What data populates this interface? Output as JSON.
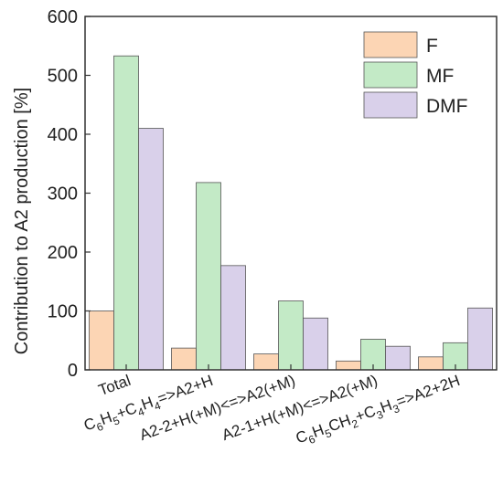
{
  "chart_data": {
    "type": "bar",
    "title": "",
    "xlabel": "",
    "ylabel": "Contribution to A2 production  [%]",
    "ylim": [
      0,
      600
    ],
    "yticks": [
      0,
      100,
      200,
      300,
      400,
      500,
      600
    ],
    "grid": false,
    "legend_position": "top-right",
    "categories": [
      "Total",
      "C6H5+C4H4=>A2+H",
      "A2-2+H(+M)<=>A2(+M)",
      "A2-1+H(+M)<=>A2(+M)",
      "C6H5CH2+C3H3=>A2+2H"
    ],
    "series": [
      {
        "name": "F",
        "color": "#fcd5b4",
        "values": [
          100,
          37,
          27,
          15,
          22
        ]
      },
      {
        "name": "MF",
        "color": "#c3eac6",
        "values": [
          533,
          318,
          117,
          52,
          46
        ]
      },
      {
        "name": "DMF",
        "color": "#d9d0ea",
        "values": [
          410,
          177,
          88,
          40,
          105
        ]
      }
    ]
  }
}
